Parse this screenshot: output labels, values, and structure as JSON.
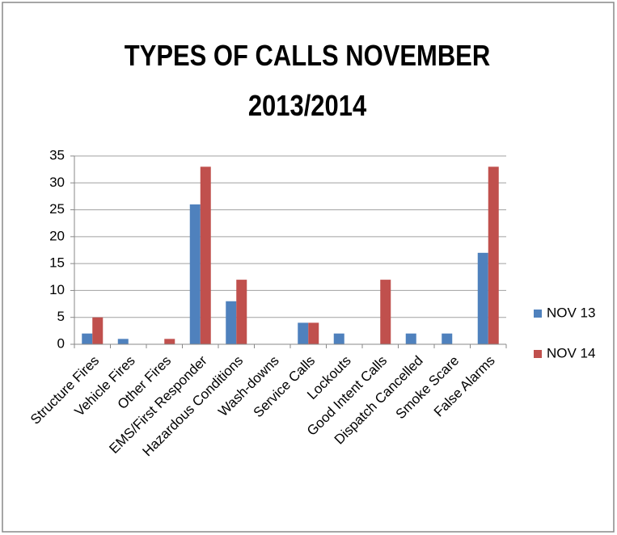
{
  "chart_data": {
    "type": "bar",
    "title": "TYPES OF CALLS NOVEMBER 2013/2014",
    "categories": [
      "Structure Fires",
      "Vehicle Fires",
      "Other Fires",
      "EMS/First Responder",
      "Hazardous Conditions",
      "Wash-downs",
      "Service Calls",
      "Lockouts",
      "Good Intent Calls",
      "Dispatch Cancelled",
      "Smoke Scare",
      "False Alarms"
    ],
    "series": [
      {
        "name": "NOV 13",
        "color": "#4f81bd",
        "values": [
          2,
          1,
          0,
          26,
          8,
          0,
          4,
          2,
          0,
          2,
          2,
          17
        ]
      },
      {
        "name": "NOV 14",
        "color": "#c0504d",
        "values": [
          5,
          0,
          1,
          33,
          12,
          0,
          4,
          0,
          12,
          0,
          0,
          33
        ]
      }
    ],
    "ylim": [
      0,
      35
    ],
    "yticks": [
      0,
      5,
      10,
      15,
      20,
      25,
      30,
      35
    ],
    "grid": true,
    "legend": "right"
  }
}
